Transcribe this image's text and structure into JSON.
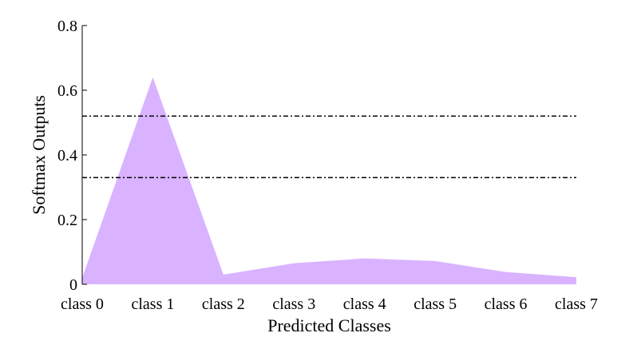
{
  "chart_data": {
    "type": "area",
    "categories": [
      "class 0",
      "class 1",
      "class 2",
      "class 3",
      "class 4",
      "class 5",
      "class 6",
      "class 7"
    ],
    "series": [
      {
        "values": [
          0.02,
          0.64,
          0.03,
          0.065,
          0.08,
          0.072,
          0.038,
          0.022
        ]
      }
    ],
    "reference_lines": [
      0.52,
      0.33
    ],
    "xlabel": "Predicted Classes",
    "ylabel": "Softmax Outputs",
    "ylim": [
      0,
      0.8
    ],
    "yticks": [
      0,
      0.2,
      0.4,
      0.6,
      0.8
    ],
    "ytick_labels": [
      "0",
      "0.2",
      "0.4",
      "0.6",
      "0.8"
    ],
    "grid": false,
    "colors": {
      "fill": "#d9b3ff",
      "reference_line": "#000000"
    }
  }
}
